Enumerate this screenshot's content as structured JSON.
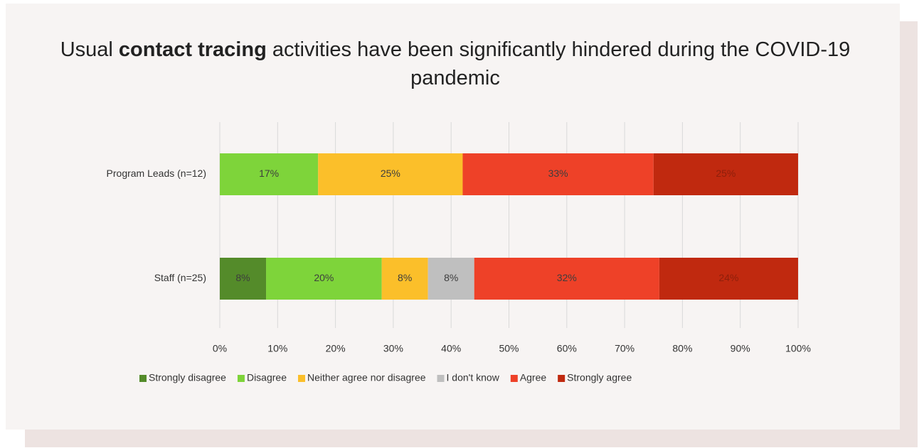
{
  "chart_data": {
    "type": "stacked_barh",
    "title_parts": [
      "Usual ",
      "contact tracing",
      " activities have been significantly hindered during the COVID-19 pandemic"
    ],
    "categories": [
      "Program Leads (n=12)",
      "Staff (n=25)"
    ],
    "series": [
      {
        "name": "Strongly disagree",
        "color": "#548b2a",
        "values": [
          null,
          8
        ],
        "value_labels": [
          null,
          "8%"
        ]
      },
      {
        "name": "Disagree",
        "color": "#7ed43a",
        "values": [
          17,
          20
        ],
        "value_labels": [
          "17%",
          "20%"
        ]
      },
      {
        "name": "Neither agree nor disagree",
        "color": "#fbbf2a",
        "values": [
          25,
          8
        ],
        "value_labels": [
          "25%",
          "8%"
        ]
      },
      {
        "name": "I don't know",
        "color": "#bfbfbf",
        "values": [
          null,
          8
        ],
        "value_labels": [
          null,
          "8%"
        ]
      },
      {
        "name": "Agree",
        "color": "#ee4128",
        "values": [
          33,
          32
        ],
        "value_labels": [
          "33%",
          "32%"
        ]
      },
      {
        "name": "Strongly agree",
        "color": "#c0290f",
        "values": [
          25,
          24
        ],
        "value_labels": [
          "25%",
          "24%"
        ]
      }
    ],
    "xlim": [
      0,
      100
    ],
    "xticks": [
      {
        "value": 0,
        "label": "0%"
      },
      {
        "value": 10,
        "label": "10%"
      },
      {
        "value": 20,
        "label": "20%"
      },
      {
        "value": 30,
        "label": "30%"
      },
      {
        "value": 40,
        "label": "40%"
      },
      {
        "value": 50,
        "label": "50%"
      },
      {
        "value": 60,
        "label": "60%"
      },
      {
        "value": 70,
        "label": "70%"
      },
      {
        "value": 80,
        "label": "80%"
      },
      {
        "value": 90,
        "label": "90%"
      },
      {
        "value": 100,
        "label": "100%"
      }
    ],
    "grid": true,
    "legend": "bottom"
  }
}
